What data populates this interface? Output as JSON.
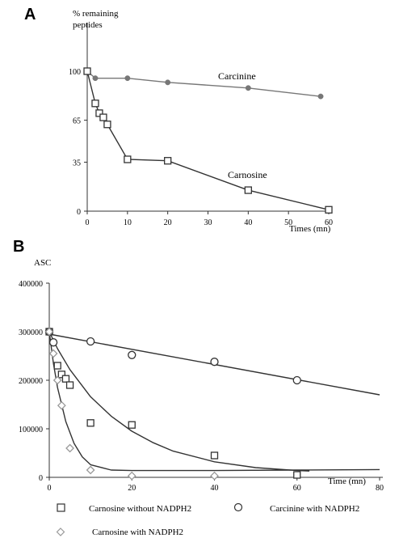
{
  "chart_data": [
    {
      "panel": "A",
      "type": "line",
      "ylabel": "% remaining\npeptides",
      "xlabel": "Times (mn)",
      "xlim": [
        0,
        60
      ],
      "ylim": [
        0,
        100
      ],
      "xticks": [
        0,
        10,
        20,
        30,
        40,
        50,
        60
      ],
      "yticks": [
        0,
        35,
        65,
        100
      ],
      "series": [
        {
          "name": "Carcinine",
          "color": "#777777",
          "marker": "dot",
          "x": [
            0,
            2,
            10,
            20,
            40,
            58
          ],
          "y": [
            100,
            95,
            95,
            92,
            88,
            82
          ]
        },
        {
          "name": "Carnosine",
          "color": "#333333",
          "marker": "square",
          "x": [
            0,
            2,
            3,
            4,
            5,
            10,
            20,
            40,
            60
          ],
          "y": [
            100,
            77,
            70,
            67,
            62,
            37,
            36,
            15,
            1
          ]
        }
      ]
    },
    {
      "panel": "B",
      "type": "scatter",
      "ylabel": "ASC",
      "xlabel": "Time (mn)",
      "xlim": [
        0,
        80
      ],
      "ylim": [
        0,
        400000
      ],
      "xticks": [
        0,
        20,
        40,
        60,
        80
      ],
      "yticks": [
        0,
        100000,
        200000,
        300000,
        400000
      ],
      "series": [
        {
          "name": "Carnosine without NADPH2",
          "color": "#333333",
          "marker": "square",
          "x": [
            0,
            2,
            3,
            4,
            5,
            10,
            20,
            40,
            60
          ],
          "y": [
            300000,
            230000,
            212000,
            203000,
            190000,
            112000,
            108000,
            45000,
            5000
          ]
        },
        {
          "name": "Carcinine with NADPH2",
          "color": "#333333",
          "marker": "circle",
          "x": [
            0,
            1,
            10,
            20,
            40,
            60
          ],
          "y": [
            300000,
            278000,
            280000,
            252000,
            238000,
            200000
          ]
        },
        {
          "name": "Carnosine with NADPH2",
          "color": "#999999",
          "marker": "diamond",
          "x": [
            0,
            1,
            2,
            3,
            5,
            10,
            20,
            40
          ],
          "y": [
            300000,
            255000,
            200000,
            148000,
            60000,
            15000,
            3000,
            3000
          ]
        }
      ],
      "fits": [
        {
          "color": "#333333",
          "x": [
            0,
            80
          ],
          "y": [
            295000,
            170000
          ]
        },
        {
          "color": "#333333",
          "x": [
            0,
            2,
            5,
            10,
            15,
            20,
            25,
            30,
            40,
            50,
            60,
            63
          ],
          "y": [
            300000,
            265000,
            222000,
            166000,
            126000,
            95000,
            72000,
            54000,
            32000,
            20000,
            14000,
            13000
          ]
        },
        {
          "color": "#333333",
          "x": [
            0,
            1,
            2,
            4,
            6,
            8,
            10,
            15,
            20,
            40,
            60,
            80
          ],
          "y": [
            300000,
            235000,
            185000,
            115000,
            70000,
            42000,
            26000,
            15000,
            14000,
            14000,
            15000,
            16000
          ]
        }
      ]
    }
  ]
}
